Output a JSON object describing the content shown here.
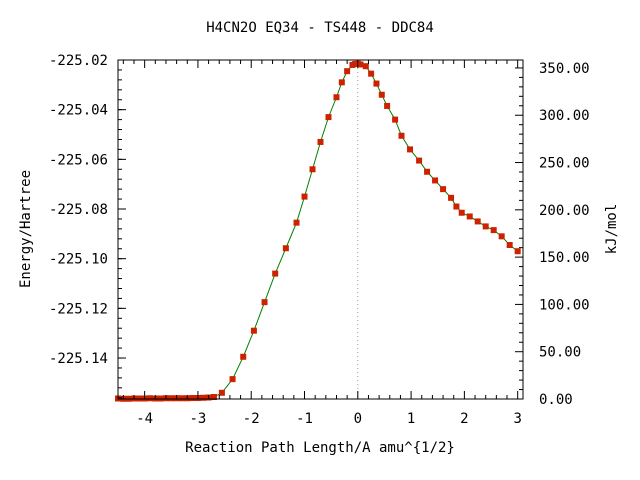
{
  "chart_data": {
    "type": "line",
    "title": "H4CN2O   EQ34 - TS448 - DDC84",
    "xlabel": "Reaction Path Length/A amu^{1/2}",
    "ylabel": "Energy/Hartree",
    "y2label": "kJ/mol",
    "xlim": [
      -4.5,
      3.1
    ],
    "ylim": [
      -225.1565,
      -225.02
    ],
    "y2lim": [
      0,
      358.4
    ],
    "grid": false,
    "x_ticks": [
      -4,
      -3,
      -2,
      -1,
      0,
      1,
      2,
      3
    ],
    "x_tick_labels": [
      "-4",
      "-3",
      "-2",
      "-1",
      "0",
      "1",
      "2",
      "3"
    ],
    "y_ticks": [
      -225.02,
      -225.04,
      -225.06,
      -225.08,
      -225.1,
      -225.12,
      -225.14
    ],
    "y_tick_labels": [
      "-225.02",
      "-225.04",
      "-225.06",
      "-225.08",
      "-225.10",
      "-225.12",
      "-225.14"
    ],
    "y2_ticks": [
      0,
      50,
      100,
      150,
      200,
      250,
      300,
      350
    ],
    "y2_tick_labels": [
      "0.00",
      "50.00",
      "100.00",
      "150.00",
      "200.00",
      "250.00",
      "300.00",
      "350.00"
    ],
    "ts_x": 0.0,
    "colors": {
      "line": "#008000",
      "marker": "#cc2200",
      "ts_line": "#999999"
    },
    "series": [
      {
        "x": [
          -4.5,
          -4.4,
          -4.3,
          -4.2,
          -4.1,
          -4.0,
          -3.9,
          -3.8,
          -3.7,
          -3.6,
          -3.5,
          -3.4,
          -3.3,
          -3.2,
          -3.1,
          -3.0,
          -2.9,
          -2.8,
          -2.7,
          -2.55,
          -2.35,
          -2.15,
          -1.95,
          -1.75,
          -1.55,
          -1.35,
          -1.15,
          -1.0,
          -0.85,
          -0.7,
          -0.55,
          -0.4,
          -0.3,
          -0.2,
          -0.1,
          -0.05,
          0.0,
          0.05,
          0.15,
          0.25,
          0.35,
          0.45,
          0.55,
          0.7,
          0.82,
          0.98,
          1.15,
          1.3,
          1.45,
          1.6,
          1.75,
          1.85,
          1.95,
          2.1,
          2.25,
          2.4,
          2.55,
          2.7,
          2.85,
          3.0
        ],
        "y": [
          -225.1563,
          -225.1564,
          -225.1564,
          -225.1563,
          -225.1563,
          -225.1563,
          -225.1562,
          -225.1563,
          -225.1563,
          -225.1562,
          -225.1562,
          -225.1562,
          -225.1562,
          -225.1562,
          -225.1561,
          -225.1561,
          -225.156,
          -225.1559,
          -225.1557,
          -225.154,
          -225.1485,
          -225.1395,
          -225.129,
          -225.1175,
          -225.106,
          -225.0958,
          -225.0855,
          -225.075,
          -225.064,
          -225.053,
          -225.043,
          -225.035,
          -225.029,
          -225.0245,
          -225.022,
          -225.0216,
          -225.0215,
          -225.0218,
          -225.0225,
          -225.0255,
          -225.0295,
          -225.034,
          -225.0385,
          -225.044,
          -225.0505,
          -225.056,
          -225.0605,
          -225.065,
          -225.0685,
          -225.072,
          -225.0755,
          -225.079,
          -225.0815,
          -225.083,
          -225.085,
          -225.087,
          -225.0885,
          -225.091,
          -225.0945,
          -225.097
        ]
      }
    ]
  }
}
